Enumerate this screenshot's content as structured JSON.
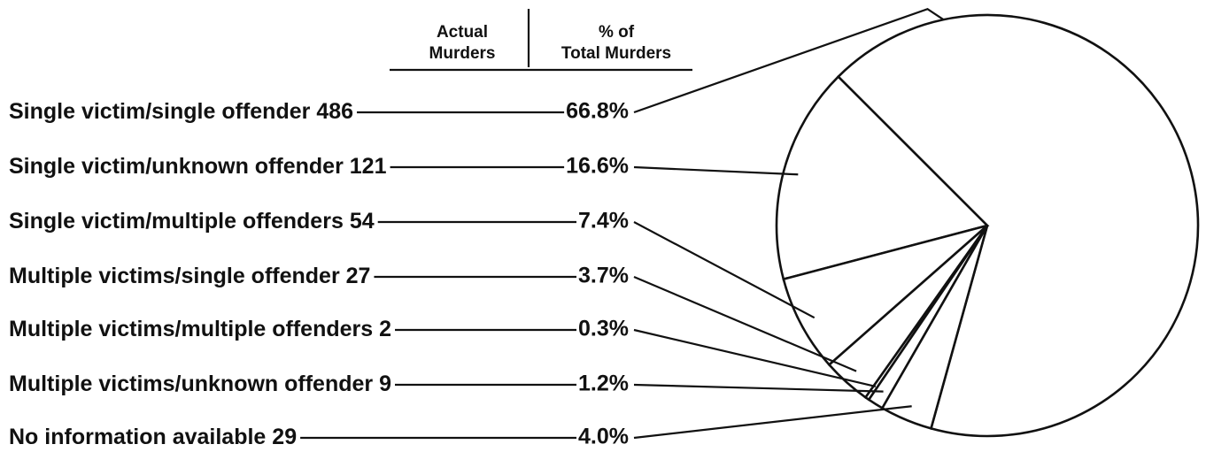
{
  "chart_data": {
    "type": "pie",
    "column_headers": [
      [
        "Actual",
        "Murders"
      ],
      [
        "% of",
        "Total Murders"
      ]
    ],
    "categories": [
      "Single victim/single offender",
      "Single victim/unknown offender",
      "Single victim/multiple offenders",
      "Multiple victims/single offender",
      "Multiple victims/multiple offenders",
      "Multiple victims/unknown offender",
      "No information available"
    ],
    "counts": [
      486,
      121,
      54,
      27,
      2,
      9,
      29
    ],
    "values": [
      66.8,
      16.6,
      7.4,
      3.7,
      0.3,
      1.2,
      4.0
    ],
    "value_labels": [
      "66.8%",
      "16.6%",
      "7.4%",
      "3.7%",
      "0.3%",
      "1.2%",
      "4.0%"
    ],
    "color": "#ffffff"
  }
}
